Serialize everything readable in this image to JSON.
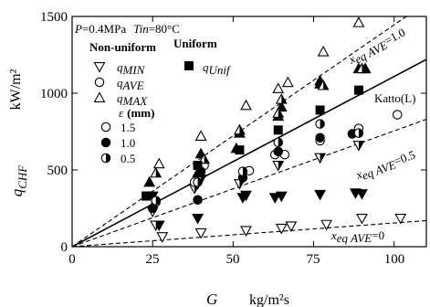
{
  "chart_data": {
    "type": "scatter",
    "xlabel_symbol": "G",
    "xlabel_unit": "kg/m²s",
    "ylabel_symbol": "q",
    "ylabel_subscript": "CHF",
    "ylabel_unit": "kW/m²",
    "xlim": [
      0,
      110
    ],
    "ylim": [
      0,
      1500
    ],
    "x_ticks": [
      0,
      25,
      50,
      75,
      100
    ],
    "y_ticks": [
      0,
      500,
      1000,
      1500
    ],
    "conditions": {
      "pressure_prefix": "P",
      "pressure_value": "=0.4MPa",
      "tin_prefix": "Tin",
      "tin_value": "=80°C"
    },
    "legend": {
      "header_nonuniform": "Non-uniform",
      "header_uniform": "Uniform",
      "q_min_base": "q",
      "q_min_sub": "MIN",
      "q_ave_base": "q",
      "q_ave_sub": "AVE",
      "q_max_base": "q",
      "q_max_sub": "MAX",
      "q_unif_base": "q",
      "q_unif_sub": "Unif",
      "epsilon_symbol": "ε",
      "epsilon_unit": "(mm)",
      "eps_values": [
        "1.5",
        "1.0",
        "0.5"
      ]
    },
    "lines": {
      "katto_label": "Katto(L)",
      "katto": [
        [
          0,
          0
        ],
        [
          110,
          1220
        ]
      ],
      "xeq1": [
        [
          0,
          0
        ],
        [
          110,
          1590
        ]
      ],
      "xeq05": [
        [
          0,
          0
        ],
        [
          110,
          830
        ]
      ],
      "xeq0": [
        [
          0,
          0
        ],
        [
          110,
          170
        ]
      ],
      "xeq_base": "x",
      "xeq_sub": "eq AVE",
      "xeq1_value": "=1.0",
      "xeq05_value": "=0.5",
      "xeq0_value": "=0"
    },
    "series": [
      {
        "name": "q MIN (non-uniform)",
        "marker": "triangle-down-open",
        "points": [
          [
            25,
            230
          ],
          [
            28,
            65
          ],
          [
            40,
            90
          ],
          [
            54,
            105
          ],
          [
            65,
            120
          ],
          [
            68,
            135
          ],
          [
            79,
            145
          ],
          [
            90,
            185
          ],
          [
            102,
            185
          ]
        ]
      },
      {
        "name": "q MIN filled",
        "marker": "triangle-down-filled",
        "points": [
          [
            25,
            330
          ],
          [
            27,
            140
          ],
          [
            39,
            185
          ],
          [
            39,
            410
          ],
          [
            53,
            320
          ],
          [
            54,
            335
          ],
          [
            63,
            320
          ],
          [
            65,
            330
          ],
          [
            77,
            340
          ],
          [
            88,
            350
          ],
          [
            90,
            345
          ]
        ]
      },
      {
        "name": "q MIN half",
        "marker": "triangle-down-half",
        "points": [
          [
            26,
            140
          ],
          [
            38,
            380
          ],
          [
            40,
            440
          ],
          [
            52,
            410
          ],
          [
            64,
            530
          ],
          [
            77,
            580
          ],
          [
            89,
            660
          ]
        ]
      },
      {
        "name": "q AVE, ε=1.5",
        "marker": "circle-open",
        "points": [
          [
            26,
            290
          ],
          [
            38,
            420
          ],
          [
            41,
            530
          ],
          [
            55,
            495
          ],
          [
            63,
            600
          ],
          [
            66,
            600
          ],
          [
            77,
            690
          ],
          [
            89,
            770
          ],
          [
            101,
            860
          ]
        ]
      },
      {
        "name": "q AVE, ε=1.0",
        "marker": "circle-filled",
        "points": [
          [
            25,
            250
          ],
          [
            39,
            305
          ],
          [
            40,
            490
          ],
          [
            53,
            450
          ],
          [
            64,
            620
          ],
          [
            77,
            710
          ],
          [
            87,
            735
          ]
        ]
      },
      {
        "name": "q AVE, ε=0.5",
        "marker": "circle-half",
        "points": [
          [
            26,
            300
          ],
          [
            39,
            420
          ],
          [
            53,
            490
          ],
          [
            64,
            680
          ],
          [
            77,
            800
          ],
          [
            89,
            740
          ]
        ]
      },
      {
        "name": "q MAX (non-uniform)",
        "marker": "triangle-up-open",
        "points": [
          [
            27,
            540
          ],
          [
            40,
            720
          ],
          [
            54,
            920
          ],
          [
            64,
            1030
          ],
          [
            67,
            1070
          ],
          [
            78,
            1270
          ],
          [
            89,
            1460
          ],
          [
            91,
            1160
          ]
        ]
      },
      {
        "name": "q MAX filled",
        "marker": "triangle-up-filled",
        "points": [
          [
            24,
            420
          ],
          [
            39,
            480
          ],
          [
            40,
            605
          ],
          [
            51,
            640
          ],
          [
            52,
            740
          ],
          [
            64,
            850
          ],
          [
            65,
            910
          ],
          [
            77,
            1060
          ],
          [
            77,
            1080
          ],
          [
            89,
            1160
          ],
          [
            91,
            1160
          ]
        ]
      },
      {
        "name": "q MAX half",
        "marker": "triangle-up-half",
        "points": [
          [
            26,
            480
          ],
          [
            41,
            570
          ],
          [
            52,
            760
          ],
          [
            64,
            870
          ],
          [
            65,
            960
          ],
          [
            78,
            1050
          ],
          [
            90,
            1160
          ]
        ]
      },
      {
        "name": "q Unif",
        "marker": "square-filled",
        "points": [
          [
            23,
            330
          ],
          [
            39,
            530
          ],
          [
            52,
            630
          ],
          [
            64,
            760
          ],
          [
            77,
            890
          ],
          [
            89,
            1020
          ]
        ]
      }
    ]
  }
}
